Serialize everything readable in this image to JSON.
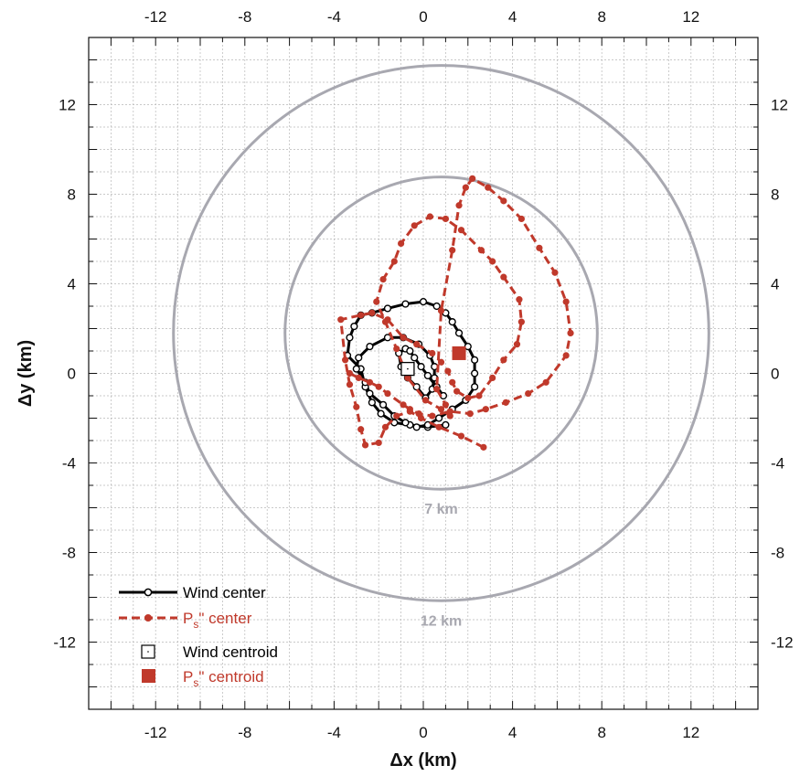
{
  "chart_data": {
    "type": "scatter",
    "xlabel": "Δx (km)",
    "ylabel": "Δy (km)",
    "xlim": [
      -15,
      15
    ],
    "ylim": [
      -15,
      15
    ],
    "xticks": [
      -12,
      -8,
      -4,
      0,
      4,
      8,
      12
    ],
    "yticks": [
      -12,
      -8,
      -4,
      0,
      4,
      8,
      12
    ],
    "grid": true,
    "legend_position": "bottom-left",
    "colors": {
      "wind": "#000000",
      "ps": "#c0392b",
      "ring": "#a8a8b0",
      "grid": "#b8b8b8"
    },
    "rings": [
      {
        "label": "7 km",
        "center": [
          0.8,
          1.8
        ],
        "radius": 7.0
      },
      {
        "label": "12 km",
        "center": [
          0.8,
          1.8
        ],
        "radius": 12.0
      }
    ],
    "series": [
      {
        "name": "Wind center",
        "style": "line-open-circle",
        "x": [
          1.0,
          0.2,
          -0.6,
          -1.3,
          -1.9,
          -2.3,
          -2.6,
          -2.8,
          -3.4,
          -3.3,
          -3.1,
          -2.8,
          -2.3,
          -1.6,
          -0.8,
          0.0,
          0.6,
          1.0,
          1.3,
          1.6,
          2.0,
          2.3,
          2.3,
          2.3,
          1.9,
          1.3,
          0.7,
          0.2,
          -0.3,
          -0.8,
          -1.3,
          -1.8,
          -2.4,
          -2.6,
          -3.0,
          -2.9,
          -2.4,
          -1.6,
          -0.9,
          -0.2,
          0.3,
          0.5,
          0.5,
          0.4,
          0.1,
          -0.3,
          -0.7,
          -1.0,
          -1.1,
          -0.8,
          -0.6,
          -0.4,
          -0.1,
          0.2,
          0.6,
          0.9
        ],
        "y": [
          -2.3,
          -2.4,
          -2.3,
          -2.2,
          -1.8,
          -1.3,
          -0.6,
          0.2,
          0.8,
          1.6,
          2.1,
          2.6,
          2.7,
          2.9,
          3.1,
          3.2,
          3.0,
          2.7,
          2.3,
          1.8,
          1.2,
          0.6,
          0.0,
          -0.6,
          -1.2,
          -1.6,
          -2.0,
          -2.3,
          -2.4,
          -2.2,
          -1.9,
          -1.4,
          -0.9,
          -0.4,
          0.2,
          0.7,
          1.2,
          1.6,
          1.6,
          1.3,
          0.8,
          0.3,
          -0.2,
          -0.7,
          -1.1,
          -0.6,
          -0.2,
          0.3,
          0.9,
          1.1,
          1.0,
          0.7,
          0.3,
          -0.1,
          -0.6,
          -1.0
        ]
      },
      {
        "name": "Pₛ\" center",
        "style": "dashed-filled-circle",
        "x": [
          2.7,
          1.7,
          0.7,
          -0.1,
          -0.6,
          -1.2,
          -1.7,
          -2.0,
          -2.6,
          -2.8,
          -3.0,
          -3.3,
          -3.5,
          -3.7,
          -2.8,
          -2.3,
          -1.6,
          -0.9,
          -0.3,
          0.4,
          0.8,
          1.1,
          1.3,
          1.5,
          2.0,
          2.5,
          3.1,
          3.6,
          4.2,
          4.4,
          4.3,
          3.6,
          3.1,
          2.6,
          1.7,
          1.0,
          0.3,
          -0.4,
          -1.0,
          -1.3,
          -1.8,
          -2.1,
          -1.7,
          -1.2,
          -0.7,
          0.1,
          0.8,
          1.2,
          1.0,
          0.6,
          0.8,
          1.3,
          1.6,
          1.9,
          2.2,
          2.9,
          3.6,
          4.4,
          5.2,
          5.9,
          6.4,
          6.6,
          6.4,
          5.5,
          4.7,
          3.7,
          2.8,
          2.1,
          1.2,
          0.4,
          -0.2,
          -0.6,
          -0.9,
          -1.6,
          -2.0,
          -2.4,
          -2.9,
          -3.3
        ],
        "y": [
          -3.3,
          -2.8,
          -2.4,
          -2.0,
          -1.7,
          -1.9,
          -2.4,
          -3.1,
          -3.2,
          -2.5,
          -1.5,
          -0.5,
          0.6,
          2.4,
          2.6,
          2.7,
          2.4,
          1.6,
          1.3,
          0.9,
          0.5,
          0.1,
          -0.4,
          -0.8,
          -1.1,
          -1.0,
          -0.2,
          0.6,
          1.3,
          2.3,
          3.3,
          4.3,
          5.0,
          5.5,
          6.4,
          6.9,
          7.0,
          6.6,
          5.8,
          5.0,
          4.2,
          3.2,
          2.3,
          1.1,
          -0.2,
          -1.2,
          -1.6,
          -1.9,
          -1.4,
          -0.7,
          2.8,
          5.5,
          7.5,
          8.3,
          8.7,
          8.3,
          7.7,
          6.9,
          5.6,
          4.5,
          3.2,
          1.8,
          0.8,
          -0.4,
          -0.9,
          -1.3,
          -1.6,
          -1.8,
          -1.7,
          -1.9,
          -1.8,
          -1.6,
          -1.4,
          -0.9,
          -0.6,
          -0.4,
          -0.2,
          0.0
        ]
      },
      {
        "name": "Wind centroid",
        "style": "open-square",
        "x": [
          -0.7
        ],
        "y": [
          0.2
        ]
      },
      {
        "name": "Pₛ\" centroid",
        "style": "filled-square",
        "x": [
          1.6
        ],
        "y": [
          0.9
        ]
      }
    ]
  },
  "legend": [
    {
      "key": "wind_center",
      "label": "Wind center"
    },
    {
      "key": "ps_center",
      "label": "Ps\" center"
    },
    {
      "key": "wind_centroid",
      "label": "Wind centroid"
    },
    {
      "key": "ps_centroid",
      "label": "Ps\" centroid"
    }
  ]
}
